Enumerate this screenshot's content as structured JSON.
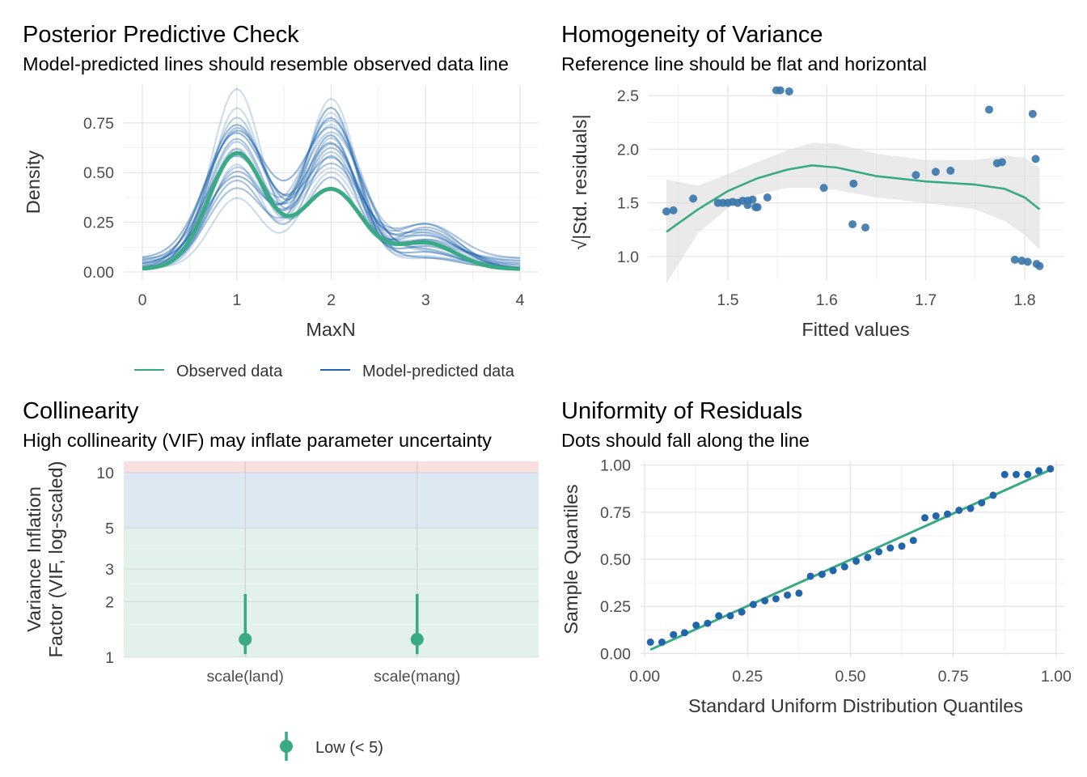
{
  "colors": {
    "observed": "#3aaa85",
    "predicted": "#2166ac",
    "points": "#3a76aa",
    "smooth": "#3aaa85",
    "band": "#dcdcdc",
    "vif_low": "#e2f1ea",
    "vif_mod": "#dee8f2",
    "vif_high": "#fbe0e2",
    "grid": "#e5e5e5"
  },
  "panels": {
    "ppc": {
      "title": "Posterior Predictive Check",
      "subtitle": "Model-predicted lines should resemble observed data line",
      "xlabel": "MaxN",
      "ylabel": "Density",
      "legend": {
        "observed": "Observed data",
        "predicted": "Model-predicted data"
      }
    },
    "hov": {
      "title": "Homogeneity of Variance",
      "subtitle": "Reference line should be flat and horizontal",
      "xlabel": "Fitted values",
      "ylabel": "√|Std. residuals|"
    },
    "col": {
      "title": "Collinearity",
      "subtitle": "High collinearity (VIF) may inflate parameter uncertainty",
      "ylabel_line1": "Variance Inflation",
      "ylabel_line2": "Factor (VIF, log-scaled)",
      "legend": {
        "low": "Low (< 5)"
      }
    },
    "qq": {
      "title": "Uniformity of Residuals",
      "subtitle": "Dots should fall along the line",
      "xlabel": "Standard Uniform Distribution Quantiles",
      "ylabel": "Sample Quantiles"
    }
  },
  "chart_data": [
    {
      "id": "ppc",
      "type": "line",
      "xlim": [
        0,
        4
      ],
      "ylim": [
        0,
        0.9
      ],
      "x_ticks": [
        0,
        1,
        2,
        3,
        4
      ],
      "y_ticks": [
        0.0,
        0.25,
        0.5,
        0.75
      ],
      "y_tick_labels": [
        "0.00",
        "0.25",
        "0.50",
        "0.75"
      ],
      "observed_params": {
        "peaks": [
          [
            1,
            0.58,
            0.3
          ],
          [
            2,
            0.4,
            0.33
          ],
          [
            3,
            0.13,
            0.32
          ]
        ]
      },
      "predicted_sims": [
        [
          0.9,
          0.78,
          0.06
        ],
        [
          0.75,
          0.62,
          0.12
        ],
        [
          0.7,
          0.55,
          0.15
        ],
        [
          0.55,
          0.8,
          0.08
        ],
        [
          0.6,
          0.72,
          0.1
        ],
        [
          0.5,
          0.68,
          0.17
        ],
        [
          0.65,
          0.45,
          0.2
        ],
        [
          0.45,
          0.75,
          0.05
        ],
        [
          0.8,
          0.5,
          0.12
        ],
        [
          0.58,
          0.65,
          0.18
        ],
        [
          0.4,
          0.6,
          0.22
        ],
        [
          0.68,
          0.7,
          0.09
        ],
        [
          0.52,
          0.85,
          0.04
        ],
        [
          0.62,
          0.58,
          0.14
        ],
        [
          0.48,
          0.52,
          0.2
        ],
        [
          0.72,
          0.66,
          0.11
        ],
        [
          0.35,
          0.48,
          0.16
        ],
        [
          0.56,
          0.74,
          0.08
        ],
        [
          0.44,
          0.56,
          0.13
        ],
        [
          0.66,
          0.62,
          0.19
        ]
      ]
    },
    {
      "id": "hov",
      "type": "scatter",
      "xlim": [
        1.42,
        1.84
      ],
      "ylim": [
        0.78,
        2.6
      ],
      "x_ticks": [
        1.5,
        1.6,
        1.7,
        1.8
      ],
      "y_ticks": [
        1.0,
        1.5,
        2.0,
        2.5
      ],
      "y_tick_labels": [
        "1.0",
        "1.5",
        "2.0",
        "2.5"
      ],
      "points": [
        [
          1.438,
          1.42
        ],
        [
          1.445,
          1.43
        ],
        [
          1.465,
          1.54
        ],
        [
          1.49,
          1.5
        ],
        [
          1.495,
          1.5
        ],
        [
          1.5,
          1.5
        ],
        [
          1.505,
          1.51
        ],
        [
          1.51,
          1.5
        ],
        [
          1.515,
          1.52
        ],
        [
          1.52,
          1.52
        ],
        [
          1.52,
          1.48
        ],
        [
          1.525,
          1.53
        ],
        [
          1.528,
          1.46
        ],
        [
          1.53,
          1.46
        ],
        [
          1.54,
          1.55
        ],
        [
          1.549,
          2.55
        ],
        [
          1.553,
          2.55
        ],
        [
          1.562,
          2.54
        ],
        [
          1.597,
          1.64
        ],
        [
          1.626,
          1.3
        ],
        [
          1.627,
          1.68
        ],
        [
          1.639,
          1.27
        ],
        [
          1.69,
          1.76
        ],
        [
          1.71,
          1.79
        ],
        [
          1.725,
          1.8
        ],
        [
          1.764,
          2.37
        ],
        [
          1.772,
          1.87
        ],
        [
          1.777,
          1.88
        ],
        [
          1.79,
          0.97
        ],
        [
          1.797,
          0.96
        ],
        [
          1.803,
          0.95
        ],
        [
          1.808,
          2.33
        ],
        [
          1.811,
          1.91
        ],
        [
          1.812,
          0.93
        ],
        [
          1.815,
          0.91
        ]
      ],
      "smooth": {
        "x": [
          1.438,
          1.47,
          1.5,
          1.53,
          1.56,
          1.585,
          1.61,
          1.65,
          1.7,
          1.75,
          1.78,
          1.8,
          1.815
        ],
        "y": [
          1.23,
          1.44,
          1.61,
          1.73,
          1.81,
          1.85,
          1.83,
          1.75,
          1.7,
          1.67,
          1.63,
          1.55,
          1.44
        ],
        "lower": [
          0.75,
          1.22,
          1.45,
          1.58,
          1.64,
          1.64,
          1.62,
          1.55,
          1.5,
          1.44,
          1.33,
          1.2,
          1.06
        ],
        "upper": [
          1.72,
          1.66,
          1.77,
          1.88,
          1.99,
          2.06,
          2.05,
          1.96,
          1.9,
          1.9,
          1.94,
          1.92,
          1.83
        ]
      }
    },
    {
      "id": "col",
      "type": "scatter",
      "categories": [
        "scale(land)",
        "scale(mang)"
      ],
      "y_scale": "log10",
      "ylim": [
        1,
        11.5
      ],
      "y_ticks": [
        1,
        2,
        3,
        5,
        10
      ],
      "y_tick_labels": [
        "1",
        "2",
        "3",
        "5",
        "10"
      ],
      "zones": [
        {
          "name": "low",
          "from": 1,
          "to": 5
        },
        {
          "name": "moderate",
          "from": 5,
          "to": 10
        },
        {
          "name": "high",
          "from": 10,
          "to": 11.5
        }
      ],
      "vif": [
        1.25,
        1.25
      ],
      "ci_low": [
        1.04,
        1.04
      ],
      "ci_high": [
        2.2,
        2.2
      ]
    },
    {
      "id": "qq",
      "type": "scatter",
      "xlim": [
        -0.01,
        1.02
      ],
      "ylim": [
        -0.02,
        1.02
      ],
      "x_ticks": [
        0.0,
        0.25,
        0.5,
        0.75,
        1.0
      ],
      "x_tick_labels": [
        "0.00",
        "0.25",
        "0.50",
        "0.75",
        "1.00"
      ],
      "y_ticks": [
        0.0,
        0.25,
        0.5,
        0.75,
        1.0
      ],
      "y_tick_labels": [
        "0.00",
        "0.25",
        "0.50",
        "0.75",
        "1.00"
      ],
      "points": [
        [
          0.014,
          0.06
        ],
        [
          0.042,
          0.06
        ],
        [
          0.07,
          0.1
        ],
        [
          0.097,
          0.11
        ],
        [
          0.125,
          0.15
        ],
        [
          0.153,
          0.16
        ],
        [
          0.18,
          0.2
        ],
        [
          0.208,
          0.2
        ],
        [
          0.236,
          0.22
        ],
        [
          0.264,
          0.26
        ],
        [
          0.292,
          0.28
        ],
        [
          0.319,
          0.29
        ],
        [
          0.347,
          0.31
        ],
        [
          0.375,
          0.32
        ],
        [
          0.403,
          0.41
        ],
        [
          0.431,
          0.42
        ],
        [
          0.458,
          0.44
        ],
        [
          0.486,
          0.46
        ],
        [
          0.514,
          0.49
        ],
        [
          0.542,
          0.51
        ],
        [
          0.569,
          0.54
        ],
        [
          0.597,
          0.56
        ],
        [
          0.625,
          0.57
        ],
        [
          0.653,
          0.6
        ],
        [
          0.681,
          0.72
        ],
        [
          0.708,
          0.73
        ],
        [
          0.736,
          0.74
        ],
        [
          0.764,
          0.76
        ],
        [
          0.792,
          0.77
        ],
        [
          0.819,
          0.8
        ],
        [
          0.847,
          0.84
        ],
        [
          0.875,
          0.95
        ],
        [
          0.903,
          0.95
        ],
        [
          0.931,
          0.95
        ],
        [
          0.958,
          0.97
        ],
        [
          0.986,
          0.98
        ]
      ],
      "line": {
        "x": [
          0.014,
          0.986
        ],
        "y": [
          0.02,
          0.975
        ]
      }
    }
  ]
}
